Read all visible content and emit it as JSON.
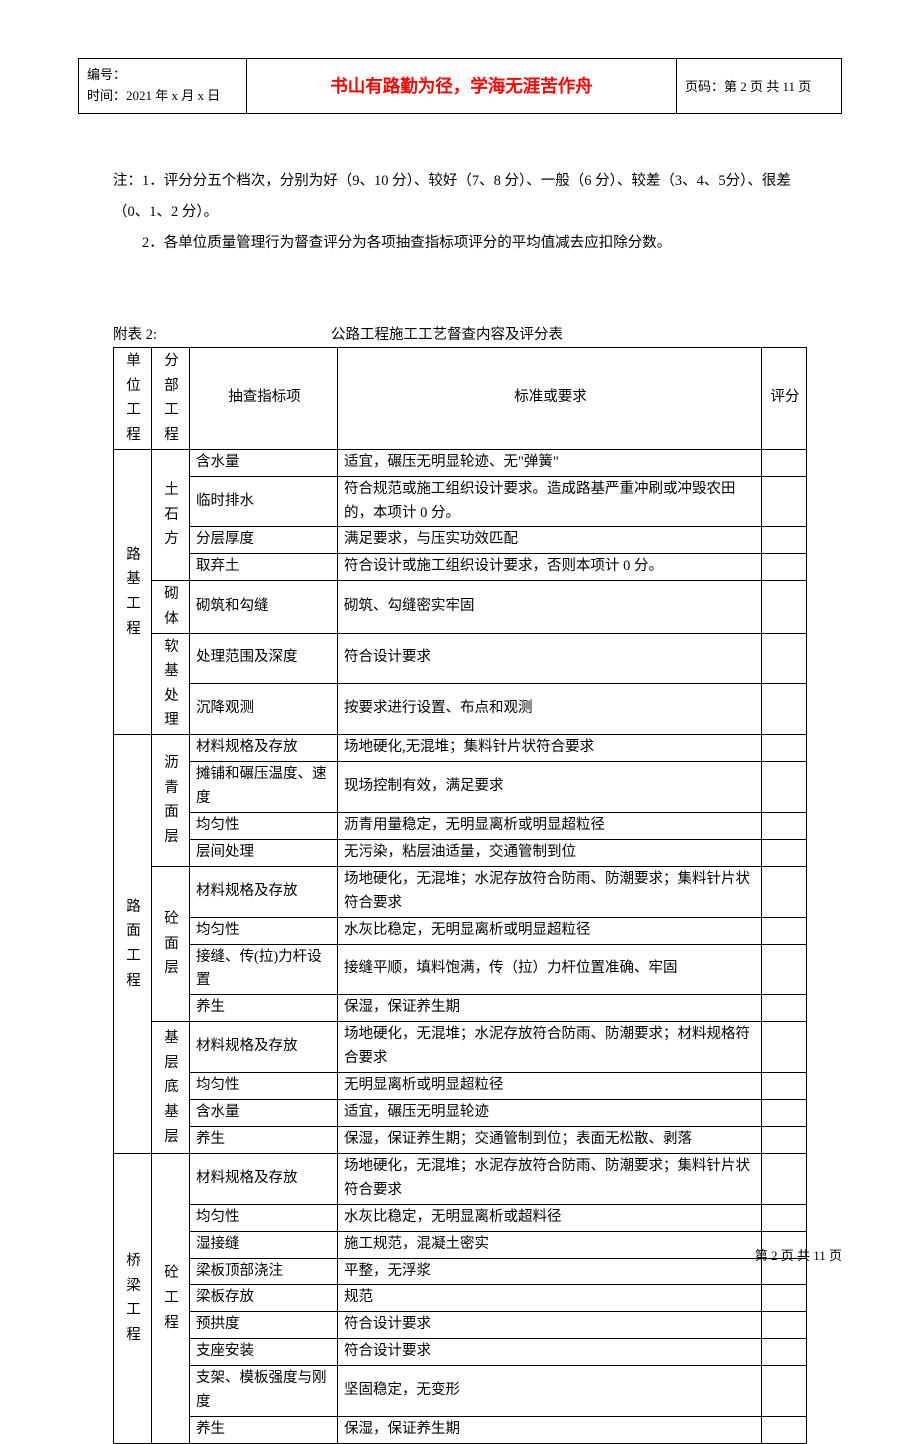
{
  "header": {
    "doc_number_label": "编号：",
    "time_label": "时间：2021 年 x 月 x 日",
    "motto": "书山有路勤为径，学海无涯苦作舟",
    "page_label": "页码：第 2 页 共 11 页"
  },
  "notes": {
    "line1": "注：1．评分分五个档次，分别为好（9、10 分）、较好（7、8 分）、一般（6 分）、较差（3、4、5分）、很差（0、1、2 分）。",
    "line2": "2．各单位质量管理行为督查评分为各项抽查指标项评分的平均值减去应扣除分数。"
  },
  "table_header": {
    "attachment": "附表 2:",
    "title": "公路工程施工工艺督查内容及评分表"
  },
  "table": {
    "columns": {
      "unit": "单位工程",
      "sub": "分部工程",
      "indicator": "抽查指标项",
      "standard": "标准或要求",
      "score": "评分"
    },
    "groups": [
      {
        "unit": "路基工程",
        "subs": [
          {
            "sub": "土石方",
            "rows": [
              {
                "indicator": "含水量",
                "standard": "适宜，碾压无明显轮迹、无\"弹簧\""
              },
              {
                "indicator": "临时排水",
                "standard": "符合规范或施工组织设计要求。造成路基严重冲刷或冲毁农田的，本项计 0 分。"
              },
              {
                "indicator": "分层厚度",
                "standard": "满足要求，与压实功效匹配"
              },
              {
                "indicator": "取弃土",
                "standard": "符合设计或施工组织设计要求，否则本项计 0 分。"
              }
            ]
          },
          {
            "sub": "砌体",
            "rows": [
              {
                "indicator": "砌筑和勾缝",
                "standard": "砌筑、勾缝密实牢固"
              }
            ]
          },
          {
            "sub": "软基处理",
            "rows": [
              {
                "indicator": "处理范围及深度",
                "standard": "符合设计要求"
              },
              {
                "indicator": "沉降观测",
                "standard": "按要求进行设置、布点和观测"
              }
            ]
          }
        ]
      },
      {
        "unit": "路面工程",
        "subs": [
          {
            "sub": "沥青面层",
            "rows": [
              {
                "indicator": "材料规格及存放",
                "standard": "场地硬化,无混堆；集料针片状符合要求"
              },
              {
                "indicator": "摊铺和碾压温度、速度",
                "standard": "现场控制有效，满足要求"
              },
              {
                "indicator": "均匀性",
                "standard": "沥青用量稳定，无明显离析或明显超粒径"
              },
              {
                "indicator": "层间处理",
                "standard": "无污染，粘层油适量，交通管制到位"
              }
            ]
          },
          {
            "sub": "砼面层",
            "rows": [
              {
                "indicator": "材料规格及存放",
                "standard": "场地硬化，无混堆；水泥存放符合防雨、防潮要求；集料针片状符合要求"
              },
              {
                "indicator": "均匀性",
                "standard": "水灰比稳定，无明显离析或明显超粒径"
              },
              {
                "indicator": "接缝、传(拉)力杆设置",
                "standard": "接缝平顺，填料饱满，传（拉）力杆位置准确、牢固"
              },
              {
                "indicator": "养生",
                "standard": "保湿，保证养生期"
              }
            ]
          },
          {
            "sub": "基层底基层",
            "rows": [
              {
                "indicator": "材料规格及存放",
                "standard": "场地硬化，无混堆；水泥存放符合防雨、防潮要求；材料规格符合要求"
              },
              {
                "indicator": "均匀性",
                "standard": "无明显离析或明显超粒径"
              },
              {
                "indicator": "含水量",
                "standard": "适宜，碾压无明显轮迹"
              },
              {
                "indicator": "养生",
                "standard": "保湿，保证养生期；交通管制到位；表面无松散、剥落"
              }
            ]
          }
        ]
      },
      {
        "unit": "桥梁工程",
        "subs": [
          {
            "sub": "砼工程",
            "rows": [
              {
                "indicator": "材料规格及存放",
                "standard": "场地硬化，无混堆；水泥存放符合防雨、防潮要求；集料针片状符合要求"
              },
              {
                "indicator": "均匀性",
                "standard": "水灰比稳定，无明显离析或超料径"
              },
              {
                "indicator": "湿接缝",
                "standard": "施工规范，混凝土密实"
              },
              {
                "indicator": "梁板顶部浇注",
                "standard": "平整，无浮浆"
              },
              {
                "indicator": "梁板存放",
                "standard": "规范"
              },
              {
                "indicator": "预拱度",
                "standard": "符合设计要求"
              },
              {
                "indicator": "支座安装",
                "standard": "符合设计要求"
              },
              {
                "indicator": "支架、模板强度与刚度",
                "standard": "坚固稳定，无变形"
              },
              {
                "indicator": "养生",
                "standard": "保湿，保证养生期"
              }
            ]
          }
        ]
      }
    ]
  },
  "footer": {
    "text": "第 2 页 共 11 页"
  },
  "colors": {
    "accent": "#ff0000",
    "text": "#000000",
    "border": "#000000",
    "background": "#ffffff"
  }
}
